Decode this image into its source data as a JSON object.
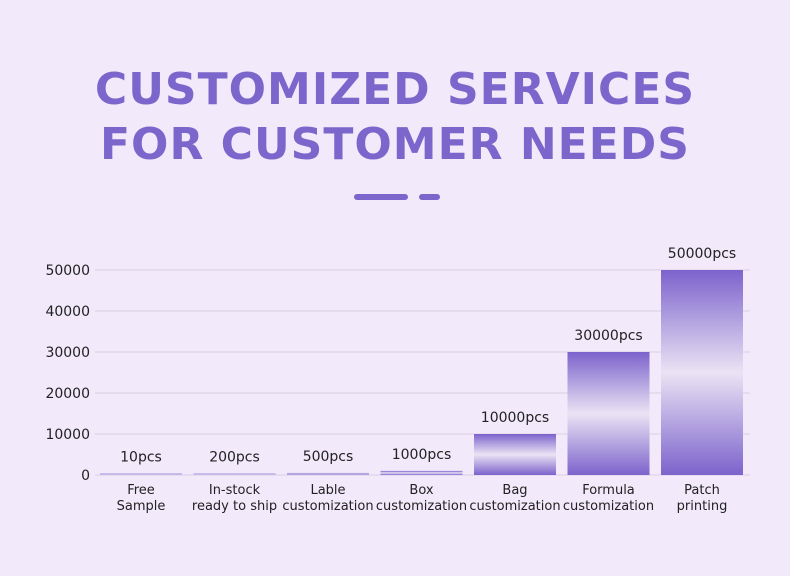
{
  "title": {
    "line1": "CUSTOMIZED SERVICES",
    "line2": "FOR CUSTOMER NEEDS"
  },
  "colors": {
    "background": "#f2e9fb",
    "accent": "#7b67cc",
    "bar_dark": "#7b63cc",
    "bar_light": "#ebe3f4",
    "grid": "#d8d0e4"
  },
  "chart_data": {
    "type": "bar",
    "categories": [
      [
        "Free",
        "Sample"
      ],
      [
        "In-stock",
        "ready to ship"
      ],
      [
        "Lable",
        "customization"
      ],
      [
        "Box",
        "customization"
      ],
      [
        "Bag",
        "customization"
      ],
      [
        "Formula",
        "customization"
      ],
      [
        "Patch",
        "printing"
      ]
    ],
    "values": [
      10,
      200,
      500,
      1000,
      10000,
      30000,
      50000
    ],
    "data_labels": [
      "10pcs",
      "200pcs",
      "500pcs",
      "1000pcs",
      "10000pcs",
      "30000pcs",
      "50000pcs"
    ],
    "yticks": [
      "0",
      "10000",
      "20000",
      "30000",
      "40000",
      "50000"
    ],
    "ylim": [
      0,
      50000
    ],
    "grid": true,
    "legend": "none"
  }
}
